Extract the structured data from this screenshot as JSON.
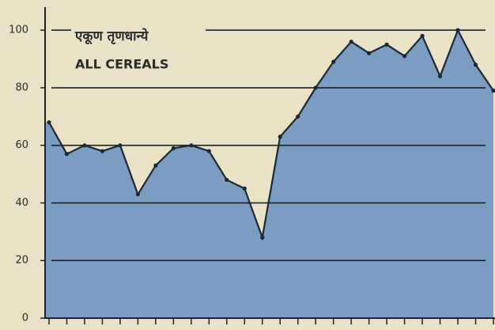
{
  "chart_data": {
    "type": "area",
    "title": "एकूण तृणधान्ये",
    "subtitle": "ALL CEREALS",
    "categories": [
      null,
      null,
      null,
      null,
      null,
      null,
      null,
      null,
      null,
      null,
      null,
      null,
      null,
      null,
      null,
      null,
      null,
      null,
      null,
      null,
      null,
      null,
      null,
      null,
      null,
      null
    ],
    "values": [
      68,
      57,
      60,
      58,
      60,
      43,
      53,
      59,
      60,
      58,
      48,
      45,
      28,
      63,
      70,
      80,
      89,
      96,
      92,
      95,
      91,
      98,
      84,
      100,
      88,
      79
    ],
    "color": "#7b9dc2",
    "line_color": "#1d2836",
    "ylim": [
      0,
      108
    ],
    "yticks": [
      0,
      20,
      40,
      60,
      80,
      100
    ],
    "grid": true
  }
}
